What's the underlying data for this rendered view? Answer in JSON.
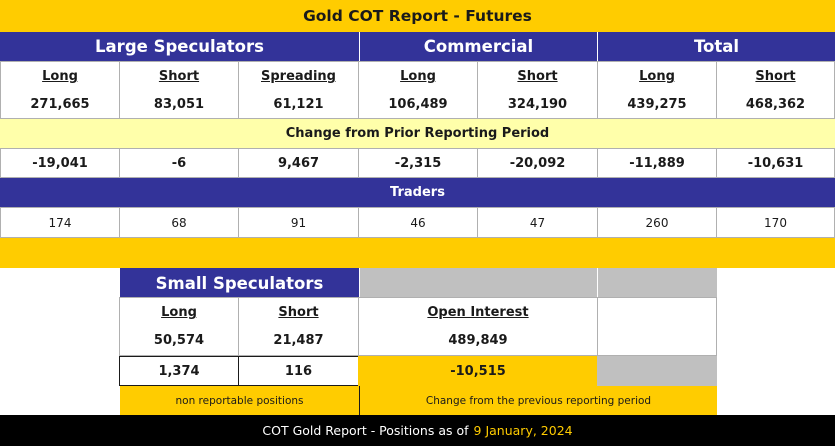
{
  "title": "Gold COT Report - Futures",
  "groups": {
    "large_speculators": "Large Speculators",
    "commercial": "Commercial",
    "total": "Total"
  },
  "columns": [
    "Long",
    "Short",
    "Spreading",
    "Long",
    "Short",
    "Long",
    "Short"
  ],
  "positions": [
    "271,665",
    "83,051",
    "61,121",
    "106,489",
    "324,190",
    "439,275",
    "468,362"
  ],
  "change_label": "Change from Prior Reporting Period",
  "changes": [
    "-19,041",
    "-6",
    "9,467",
    "-2,315",
    "-20,092",
    "-11,889",
    "-10,631"
  ],
  "traders_label": "Traders",
  "traders": [
    "174",
    "68",
    "91",
    "46",
    "47",
    "260",
    "170"
  ],
  "small_speculators": {
    "title": "Small Speculators",
    "long_label": "Long",
    "short_label": "Short",
    "long": "50,574",
    "short": "21,487",
    "long_change": "1,374",
    "short_change": "116",
    "note": "non reportable positions"
  },
  "open_interest": {
    "label": "Open Interest",
    "value": "489,849",
    "change": "-10,515",
    "note": "Change from the previous reporting period"
  },
  "footer": {
    "text": "COT Gold Report - Positions as of",
    "date": "9 January, 2024"
  },
  "colors": {
    "gold": "#ffcc00",
    "navy": "#333399",
    "pale_yellow": "#ffffaa",
    "grey": "#c0c0c0",
    "footer_bg": "#000000"
  }
}
